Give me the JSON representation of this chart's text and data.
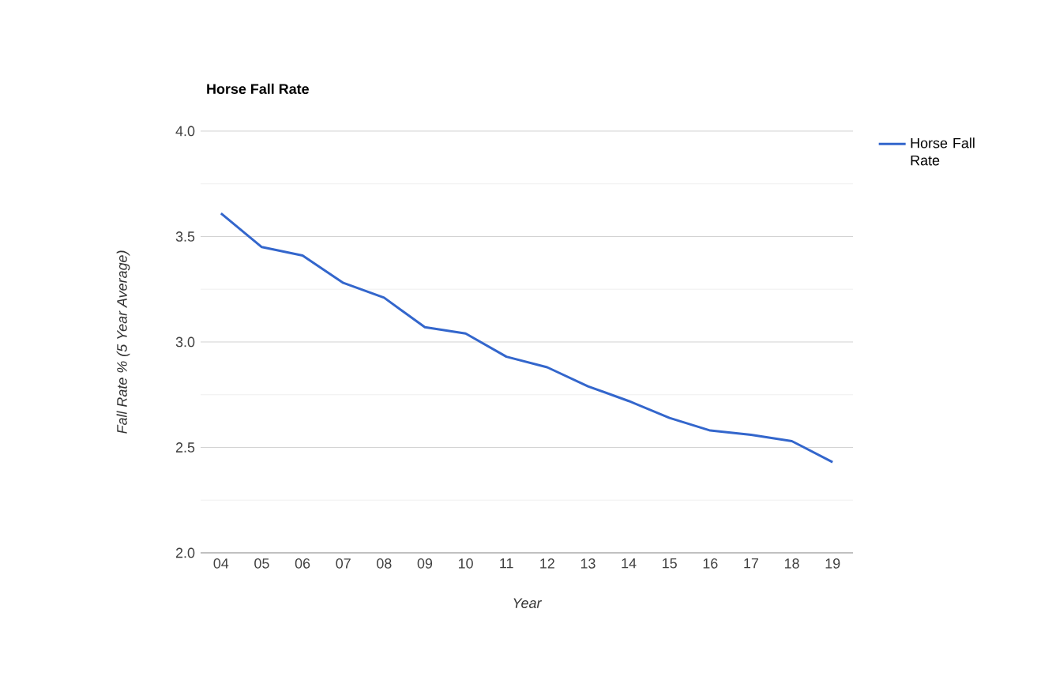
{
  "chart_data": {
    "type": "line",
    "title": "Horse Fall Rate",
    "xlabel": "Year",
    "ylabel": "Fall Rate % (5 Year Average)",
    "categories": [
      "04",
      "05",
      "06",
      "07",
      "08",
      "09",
      "10",
      "11",
      "12",
      "13",
      "14",
      "15",
      "16",
      "17",
      "18",
      "19"
    ],
    "series": [
      {
        "name": "Horse Fall Rate",
        "color": "#3366cc",
        "values": [
          3.61,
          3.45,
          3.41,
          3.28,
          3.21,
          3.07,
          3.04,
          2.93,
          2.88,
          2.79,
          2.72,
          2.64,
          2.58,
          2.56,
          2.53,
          2.43
        ]
      }
    ],
    "ylim": [
      2,
      4
    ],
    "yticks": [
      {
        "value": 2,
        "label": "2.0"
      },
      {
        "value": 2.25,
        "label": null
      },
      {
        "value": 2.5,
        "label": "2.5"
      },
      {
        "value": 2.75,
        "label": null
      },
      {
        "value": 3,
        "label": "3.0"
      },
      {
        "value": 3.25,
        "label": null
      },
      {
        "value": 3.5,
        "label": "3.5"
      },
      {
        "value": 3.75,
        "label": null
      },
      {
        "value": 4,
        "label": "4.0"
      }
    ],
    "grid": "y",
    "legend": "right",
    "marker": "none",
    "line_style": "solid"
  }
}
